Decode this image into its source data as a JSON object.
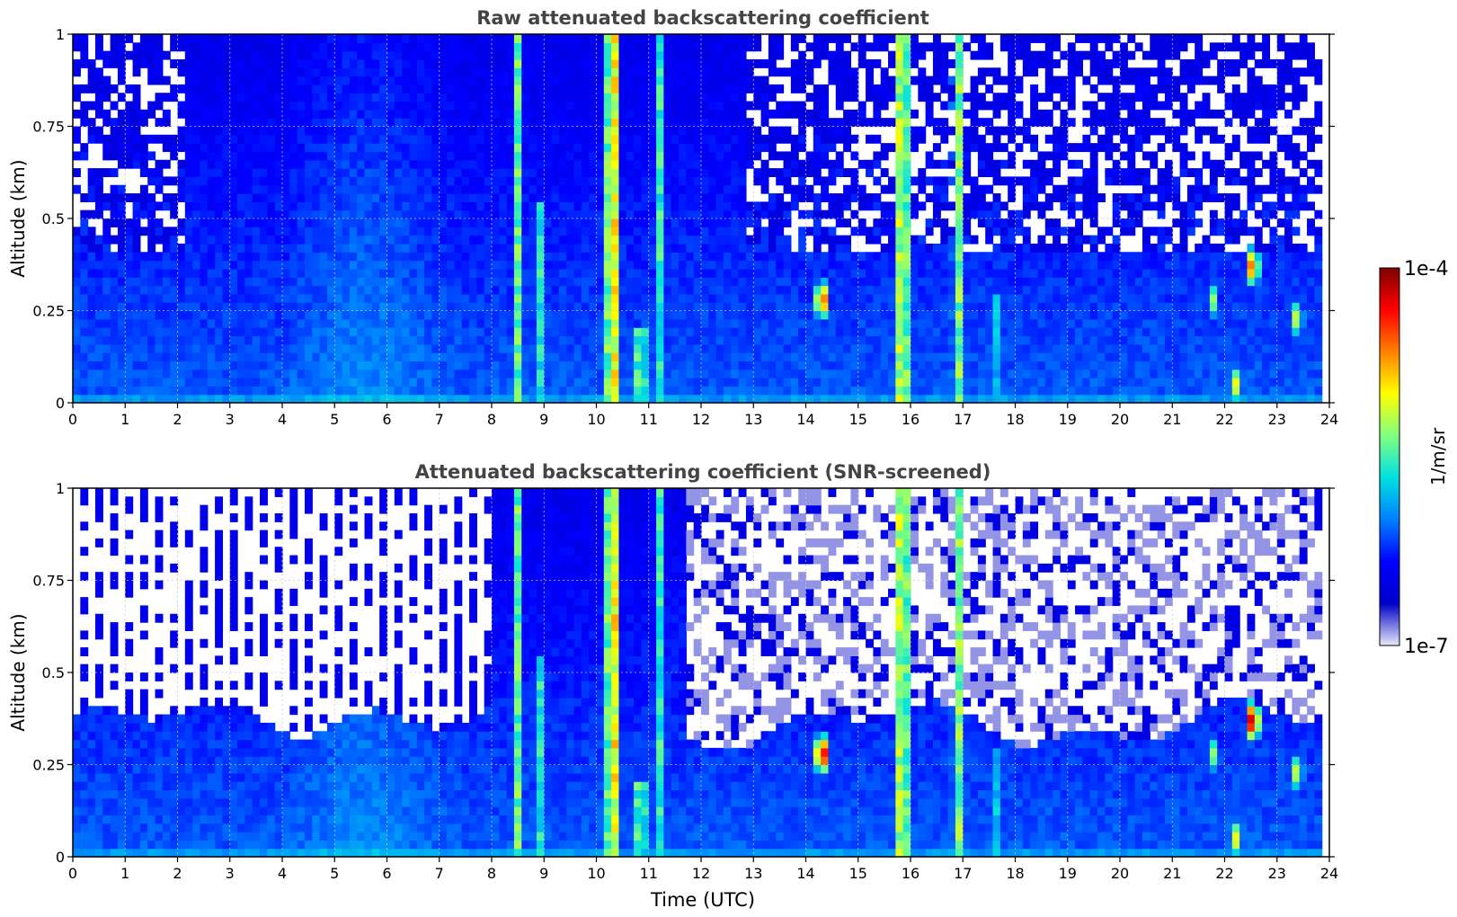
{
  "chart_data": [
    {
      "type": "heatmap",
      "title": "Raw attenuated backscattering coefficient",
      "xlabel": "",
      "ylabel": "Altitude (km)",
      "xlim": [
        0,
        24
      ],
      "ylim": [
        0,
        1
      ],
      "x_ticks": [
        "0",
        "1",
        "2",
        "3",
        "4",
        "5",
        "6",
        "7",
        "8",
        "9",
        "10",
        "11",
        "12",
        "13",
        "14",
        "15",
        "16",
        "17",
        "18",
        "19",
        "20",
        "21",
        "22",
        "23",
        "24"
      ],
      "y_ticks": [
        "0",
        "0.25",
        "0.5",
        "0.75",
        "1"
      ],
      "grid": true,
      "screened": false,
      "features": [
        {
          "kind": "plume",
          "time": 8.5,
          "top": 1.0,
          "level": 0.6
        },
        {
          "kind": "plume",
          "time": 8.9,
          "top": 0.55,
          "level": 0.55
        },
        {
          "kind": "plume",
          "time": 10.3,
          "top": 1.0,
          "level": 0.88
        },
        {
          "kind": "plume",
          "time": 10.85,
          "top": 0.2,
          "level": 0.7
        },
        {
          "kind": "plume",
          "time": 11.2,
          "top": 1.0,
          "level": 0.55
        },
        {
          "kind": "plume",
          "time": 15.85,
          "top": 1.0,
          "level": 0.82
        },
        {
          "kind": "plume",
          "time": 16.9,
          "top": 1.0,
          "level": 0.65
        },
        {
          "kind": "plume",
          "time": 17.6,
          "top": 0.3,
          "level": 0.5
        },
        {
          "kind": "blob",
          "time": 14.3,
          "alt": 0.28,
          "level": 0.97
        },
        {
          "kind": "blob",
          "time": 22.55,
          "alt": 0.37,
          "level": 0.93
        },
        {
          "kind": "blob",
          "time": 23.4,
          "alt": 0.23,
          "level": 0.7
        },
        {
          "kind": "blob",
          "time": 21.75,
          "alt": 0.28,
          "level": 0.62
        },
        {
          "kind": "blob",
          "time": 22.25,
          "alt": 0.05,
          "level": 0.72
        }
      ]
    },
    {
      "type": "heatmap",
      "title": "Attenuated backscattering coefficient (SNR-screened)",
      "xlabel": "Time (UTC)",
      "ylabel": "Altitude (km)",
      "xlim": [
        0,
        24
      ],
      "ylim": [
        0,
        1
      ],
      "x_ticks": [
        "0",
        "1",
        "2",
        "3",
        "4",
        "5",
        "6",
        "7",
        "8",
        "9",
        "10",
        "11",
        "12",
        "13",
        "14",
        "15",
        "16",
        "17",
        "18",
        "19",
        "20",
        "21",
        "22",
        "23",
        "24"
      ],
      "y_ticks": [
        "0",
        "0.25",
        "0.5",
        "0.75",
        "1"
      ],
      "grid": true,
      "screened": true,
      "features": [
        {
          "kind": "plume",
          "time": 8.5,
          "top": 1.0,
          "level": 0.6
        },
        {
          "kind": "plume",
          "time": 8.9,
          "top": 0.55,
          "level": 0.55
        },
        {
          "kind": "plume",
          "time": 10.3,
          "top": 1.0,
          "level": 0.88
        },
        {
          "kind": "plume",
          "time": 10.85,
          "top": 0.2,
          "level": 0.7
        },
        {
          "kind": "plume",
          "time": 11.2,
          "top": 1.0,
          "level": 0.55
        },
        {
          "kind": "plume",
          "time": 15.85,
          "top": 1.0,
          "level": 0.82
        },
        {
          "kind": "plume",
          "time": 16.9,
          "top": 1.0,
          "level": 0.65
        },
        {
          "kind": "plume",
          "time": 17.6,
          "top": 0.3,
          "level": 0.5
        },
        {
          "kind": "blob",
          "time": 14.3,
          "alt": 0.28,
          "level": 1.1
        },
        {
          "kind": "blob",
          "time": 22.55,
          "alt": 0.37,
          "level": 1.1
        },
        {
          "kind": "blob",
          "time": 23.4,
          "alt": 0.23,
          "level": 0.7
        },
        {
          "kind": "blob",
          "time": 21.75,
          "alt": 0.28,
          "level": 0.62
        },
        {
          "kind": "blob",
          "time": 22.25,
          "alt": 0.05,
          "level": 0.72
        }
      ]
    }
  ],
  "colorbar": {
    "label": "1/m/sr",
    "min_label": "1e-7",
    "max_label": "1e-4",
    "scale": "log",
    "colormap": "jet",
    "colors": [
      "#e8e8f8",
      "#0000c8",
      "#0000ff",
      "#0080ff",
      "#00e0e0",
      "#80ff80",
      "#ffff00",
      "#ff8000",
      "#ff0000",
      "#800000"
    ]
  }
}
